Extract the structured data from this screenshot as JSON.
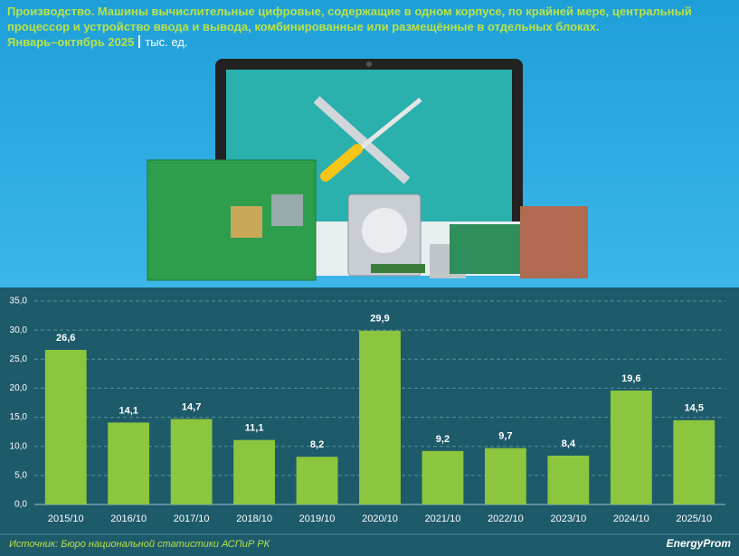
{
  "chart_data": {
    "type": "bar",
    "title": "Производство. Машины вычислительные цифровые, содержащие в одном корпусе, по крайней мере, центральный процессор и устройство ввода и вывода, комбинированные или размещённые в отдельных блоках.",
    "subtitle": "Январь–октябрь 2025",
    "unit": "тыс. ед.",
    "categories": [
      "2015/10",
      "2016/10",
      "2017/10",
      "2018/10",
      "2019/10",
      "2020/10",
      "2021/10",
      "2022/10",
      "2023/10",
      "2024/10",
      "2025/10"
    ],
    "values": [
      26.6,
      14.1,
      14.7,
      11.1,
      8.2,
      29.9,
      9.2,
      9.7,
      8.4,
      19.6,
      14.5
    ],
    "value_labels": [
      "26,6",
      "14,1",
      "14,7",
      "11,1",
      "8,2",
      "29,9",
      "9,2",
      "9,7",
      "8,4",
      "19,6",
      "14,5"
    ],
    "color": "#8cc63f",
    "ylim": [
      0,
      35
    ],
    "yticks": [
      {
        "value": 0,
        "label": "0,0"
      },
      {
        "value": 5,
        "label": "5,0"
      },
      {
        "value": 10,
        "label": "10,0"
      },
      {
        "value": 15,
        "label": "15,0"
      },
      {
        "value": 20,
        "label": "20,0"
      },
      {
        "value": 25,
        "label": "25,0"
      },
      {
        "value": 30,
        "label": "30,0"
      },
      {
        "value": 35,
        "label": "35,0"
      }
    ],
    "grid": true,
    "source": "Источник: Бюро национальной статистики АСПиР РК",
    "logo": "EnergyProm"
  }
}
